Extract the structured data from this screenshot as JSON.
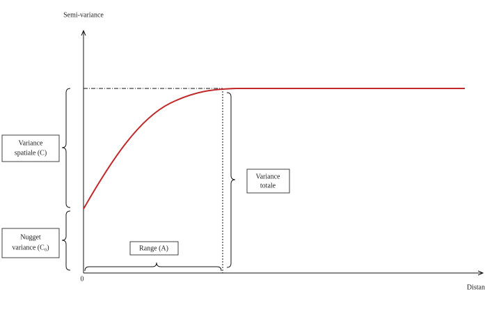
{
  "axes": {
    "y_label": "Semi-variance",
    "x_label": "Distan",
    "origin": "0"
  },
  "annotations": {
    "spatial": [
      "Variance",
      "spatiale (C)"
    ],
    "nugget": [
      "Nugget",
      "variance (C₀)"
    ],
    "total": [
      "Variance",
      "totale"
    ],
    "range": [
      "Range (A)"
    ]
  }
}
